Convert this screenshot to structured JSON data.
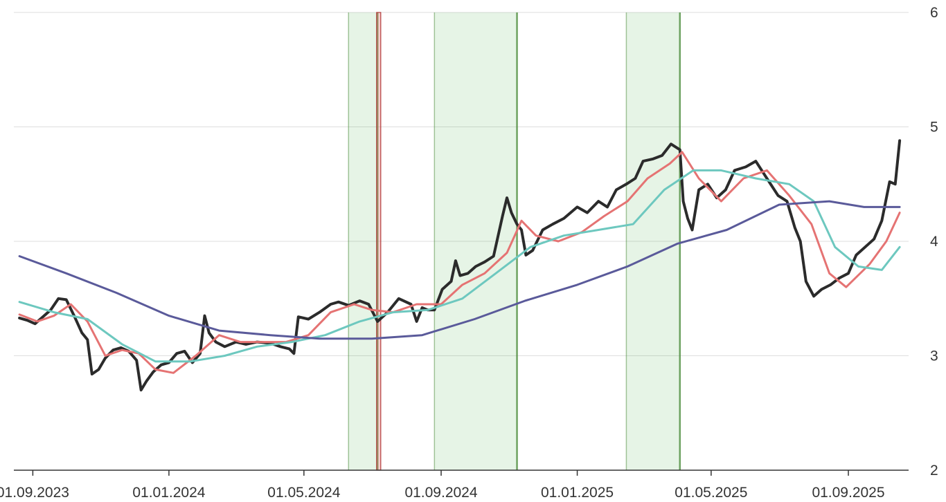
{
  "chart_data": {
    "type": "line",
    "x_axis": {
      "type": "date",
      "min": "2023-08-15",
      "max": "2025-10-25",
      "ticks": [
        {
          "date": "2023-09-01",
          "label": "01.09.2023"
        },
        {
          "date": "2024-01-01",
          "label": "01.01.2024"
        },
        {
          "date": "2024-05-01",
          "label": "01.05.2024"
        },
        {
          "date": "2024-09-01",
          "label": "01.09.2024"
        },
        {
          "date": "2025-01-01",
          "label": "01.01.2025"
        },
        {
          "date": "2025-05-01",
          "label": "01.05.2025"
        },
        {
          "date": "2025-09-01",
          "label": "01.09.2025"
        }
      ]
    },
    "y_axis": {
      "min": 2,
      "max": 6,
      "position": "right",
      "ticks": [
        2,
        3,
        4,
        5,
        6
      ],
      "grid": true
    },
    "bands": [
      {
        "start": "2024-06-10",
        "end": "2024-07-06",
        "color": "#4caf50",
        "edge": "#4c8c3c"
      },
      {
        "start": "2024-08-26",
        "end": "2024-11-08",
        "color": "#4caf50",
        "edge": "#4c8c3c"
      },
      {
        "start": "2025-02-14",
        "end": "2025-04-03",
        "color": "#4caf50",
        "edge": "#4c8c3c"
      }
    ],
    "markers": [
      {
        "date": "2024-07-07",
        "color": "#e57373",
        "edge": "#b03a3a"
      }
    ],
    "series": [
      {
        "color": "#2b2b2b",
        "width": 4,
        "points": [
          [
            "2023-08-20",
            3.33
          ],
          [
            "2023-08-27",
            3.31
          ],
          [
            "2023-09-03",
            3.28
          ],
          [
            "2023-09-10",
            3.34
          ],
          [
            "2023-09-17",
            3.4
          ],
          [
            "2023-09-24",
            3.5
          ],
          [
            "2023-10-01",
            3.49
          ],
          [
            "2023-10-08",
            3.35
          ],
          [
            "2023-10-15",
            3.2
          ],
          [
            "2023-10-20",
            3.14
          ],
          [
            "2023-10-24",
            2.84
          ],
          [
            "2023-10-30",
            2.88
          ],
          [
            "2023-11-05",
            2.98
          ],
          [
            "2023-11-12",
            3.05
          ],
          [
            "2023-11-19",
            3.07
          ],
          [
            "2023-11-26",
            3.04
          ],
          [
            "2023-12-03",
            2.96
          ],
          [
            "2023-12-07",
            2.7
          ],
          [
            "2023-12-12",
            2.78
          ],
          [
            "2023-12-18",
            2.86
          ],
          [
            "2023-12-25",
            2.92
          ],
          [
            "2024-01-01",
            2.94
          ],
          [
            "2024-01-08",
            3.02
          ],
          [
            "2024-01-15",
            3.04
          ],
          [
            "2024-01-22",
            2.94
          ],
          [
            "2024-01-29",
            3.02
          ],
          [
            "2024-02-02",
            3.35
          ],
          [
            "2024-02-06",
            3.2
          ],
          [
            "2024-02-12",
            3.12
          ],
          [
            "2024-02-20",
            3.08
          ],
          [
            "2024-03-01",
            3.12
          ],
          [
            "2024-03-10",
            3.1
          ],
          [
            "2024-03-20",
            3.12
          ],
          [
            "2024-04-01",
            3.11
          ],
          [
            "2024-04-10",
            3.08
          ],
          [
            "2024-04-18",
            3.06
          ],
          [
            "2024-04-22",
            3.02
          ],
          [
            "2024-04-26",
            3.34
          ],
          [
            "2024-05-05",
            3.32
          ],
          [
            "2024-05-15",
            3.38
          ],
          [
            "2024-05-25",
            3.45
          ],
          [
            "2024-06-01",
            3.47
          ],
          [
            "2024-06-10",
            3.44
          ],
          [
            "2024-06-20",
            3.48
          ],
          [
            "2024-06-28",
            3.45
          ],
          [
            "2024-07-06",
            3.3
          ],
          [
            "2024-07-15",
            3.38
          ],
          [
            "2024-07-25",
            3.5
          ],
          [
            "2024-08-05",
            3.45
          ],
          [
            "2024-08-10",
            3.3
          ],
          [
            "2024-08-15",
            3.42
          ],
          [
            "2024-08-20",
            3.4
          ],
          [
            "2024-08-26",
            3.4
          ],
          [
            "2024-09-02",
            3.58
          ],
          [
            "2024-09-10",
            3.65
          ],
          [
            "2024-09-14",
            3.83
          ],
          [
            "2024-09-18",
            3.7
          ],
          [
            "2024-09-25",
            3.72
          ],
          [
            "2024-10-02",
            3.78
          ],
          [
            "2024-10-10",
            3.82
          ],
          [
            "2024-10-18",
            3.87
          ],
          [
            "2024-10-26",
            4.22
          ],
          [
            "2024-10-30",
            4.38
          ],
          [
            "2024-11-03",
            4.25
          ],
          [
            "2024-11-08",
            4.15
          ],
          [
            "2024-11-12",
            4.1
          ],
          [
            "2024-11-16",
            3.88
          ],
          [
            "2024-11-22",
            3.92
          ],
          [
            "2024-12-01",
            4.1
          ],
          [
            "2024-12-10",
            4.15
          ],
          [
            "2024-12-20",
            4.2
          ],
          [
            "2025-01-01",
            4.3
          ],
          [
            "2025-01-10",
            4.25
          ],
          [
            "2025-01-20",
            4.35
          ],
          [
            "2025-01-28",
            4.3
          ],
          [
            "2025-02-05",
            4.45
          ],
          [
            "2025-02-14",
            4.5
          ],
          [
            "2025-02-22",
            4.55
          ],
          [
            "2025-03-01",
            4.7
          ],
          [
            "2025-03-10",
            4.72
          ],
          [
            "2025-03-18",
            4.75
          ],
          [
            "2025-03-26",
            4.85
          ],
          [
            "2025-04-03",
            4.8
          ],
          [
            "2025-04-06",
            4.35
          ],
          [
            "2025-04-10",
            4.2
          ],
          [
            "2025-04-14",
            4.1
          ],
          [
            "2025-04-20",
            4.45
          ],
          [
            "2025-04-28",
            4.5
          ],
          [
            "2025-05-06",
            4.38
          ],
          [
            "2025-05-14",
            4.45
          ],
          [
            "2025-05-22",
            4.62
          ],
          [
            "2025-06-01",
            4.65
          ],
          [
            "2025-06-10",
            4.7
          ],
          [
            "2025-06-20",
            4.55
          ],
          [
            "2025-06-30",
            4.4
          ],
          [
            "2025-07-08",
            4.35
          ],
          [
            "2025-07-15",
            4.12
          ],
          [
            "2025-07-20",
            4.0
          ],
          [
            "2025-07-25",
            3.65
          ],
          [
            "2025-08-01",
            3.52
          ],
          [
            "2025-08-08",
            3.58
          ],
          [
            "2025-08-16",
            3.62
          ],
          [
            "2025-08-24",
            3.68
          ],
          [
            "2025-09-01",
            3.72
          ],
          [
            "2025-09-08",
            3.88
          ],
          [
            "2025-09-16",
            3.95
          ],
          [
            "2025-09-24",
            4.02
          ],
          [
            "2025-10-01",
            4.18
          ],
          [
            "2025-10-08",
            4.52
          ],
          [
            "2025-10-13",
            4.5
          ],
          [
            "2025-10-17",
            4.88
          ]
        ]
      },
      {
        "color": "#e57373",
        "width": 3,
        "points": [
          [
            "2023-08-20",
            3.36
          ],
          [
            "2023-09-05",
            3.3
          ],
          [
            "2023-09-20",
            3.35
          ],
          [
            "2023-10-05",
            3.45
          ],
          [
            "2023-10-20",
            3.3
          ],
          [
            "2023-11-05",
            3.0
          ],
          [
            "2023-11-20",
            3.05
          ],
          [
            "2023-12-05",
            3.02
          ],
          [
            "2023-12-20",
            2.88
          ],
          [
            "2024-01-05",
            2.85
          ],
          [
            "2024-01-25",
            3.0
          ],
          [
            "2024-02-15",
            3.18
          ],
          [
            "2024-03-05",
            3.12
          ],
          [
            "2024-03-25",
            3.12
          ],
          [
            "2024-04-15",
            3.12
          ],
          [
            "2024-05-05",
            3.18
          ],
          [
            "2024-05-25",
            3.38
          ],
          [
            "2024-06-15",
            3.45
          ],
          [
            "2024-07-01",
            3.4
          ],
          [
            "2024-07-20",
            3.38
          ],
          [
            "2024-08-10",
            3.45
          ],
          [
            "2024-09-01",
            3.45
          ],
          [
            "2024-09-20",
            3.62
          ],
          [
            "2024-10-10",
            3.72
          ],
          [
            "2024-10-30",
            3.9
          ],
          [
            "2024-11-12",
            4.18
          ],
          [
            "2024-11-25",
            4.05
          ],
          [
            "2024-12-15",
            4.0
          ],
          [
            "2025-01-05",
            4.08
          ],
          [
            "2025-01-25",
            4.22
          ],
          [
            "2025-02-15",
            4.35
          ],
          [
            "2025-03-05",
            4.55
          ],
          [
            "2025-03-25",
            4.68
          ],
          [
            "2025-04-05",
            4.78
          ],
          [
            "2025-04-20",
            4.55
          ],
          [
            "2025-05-10",
            4.35
          ],
          [
            "2025-05-30",
            4.55
          ],
          [
            "2025-06-20",
            4.62
          ],
          [
            "2025-07-10",
            4.4
          ],
          [
            "2025-07-30",
            4.15
          ],
          [
            "2025-08-15",
            3.72
          ],
          [
            "2025-08-30",
            3.6
          ],
          [
            "2025-09-20",
            3.8
          ],
          [
            "2025-10-05",
            4.0
          ],
          [
            "2025-10-17",
            4.25
          ]
        ]
      },
      {
        "color": "#6dc8bf",
        "width": 3,
        "points": [
          [
            "2023-08-20",
            3.47
          ],
          [
            "2023-09-20",
            3.38
          ],
          [
            "2023-10-20",
            3.32
          ],
          [
            "2023-11-20",
            3.1
          ],
          [
            "2023-12-20",
            2.95
          ],
          [
            "2024-01-20",
            2.95
          ],
          [
            "2024-02-20",
            3.0
          ],
          [
            "2024-03-20",
            3.08
          ],
          [
            "2024-04-20",
            3.12
          ],
          [
            "2024-05-20",
            3.18
          ],
          [
            "2024-06-20",
            3.3
          ],
          [
            "2024-07-20",
            3.38
          ],
          [
            "2024-08-20",
            3.4
          ],
          [
            "2024-09-20",
            3.5
          ],
          [
            "2024-10-20",
            3.72
          ],
          [
            "2024-11-20",
            3.95
          ],
          [
            "2024-12-20",
            4.05
          ],
          [
            "2025-01-20",
            4.1
          ],
          [
            "2025-02-20",
            4.15
          ],
          [
            "2025-03-20",
            4.45
          ],
          [
            "2025-04-15",
            4.62
          ],
          [
            "2025-05-10",
            4.62
          ],
          [
            "2025-06-10",
            4.55
          ],
          [
            "2025-07-10",
            4.5
          ],
          [
            "2025-08-01",
            4.35
          ],
          [
            "2025-08-20",
            3.95
          ],
          [
            "2025-09-10",
            3.78
          ],
          [
            "2025-10-01",
            3.75
          ],
          [
            "2025-10-17",
            3.95
          ]
        ]
      },
      {
        "color": "#5a5a9a",
        "width": 3,
        "points": [
          [
            "2023-08-20",
            3.87
          ],
          [
            "2023-10-01",
            3.72
          ],
          [
            "2023-11-15",
            3.55
          ],
          [
            "2024-01-01",
            3.35
          ],
          [
            "2024-02-15",
            3.22
          ],
          [
            "2024-04-01",
            3.18
          ],
          [
            "2024-05-15",
            3.15
          ],
          [
            "2024-07-01",
            3.15
          ],
          [
            "2024-08-15",
            3.18
          ],
          [
            "2024-10-01",
            3.32
          ],
          [
            "2024-11-15",
            3.48
          ],
          [
            "2025-01-01",
            3.62
          ],
          [
            "2025-02-15",
            3.78
          ],
          [
            "2025-04-01",
            3.98
          ],
          [
            "2025-05-15",
            4.1
          ],
          [
            "2025-07-01",
            4.32
          ],
          [
            "2025-08-15",
            4.35
          ],
          [
            "2025-09-15",
            4.3
          ],
          [
            "2025-10-17",
            4.3
          ]
        ]
      }
    ]
  }
}
